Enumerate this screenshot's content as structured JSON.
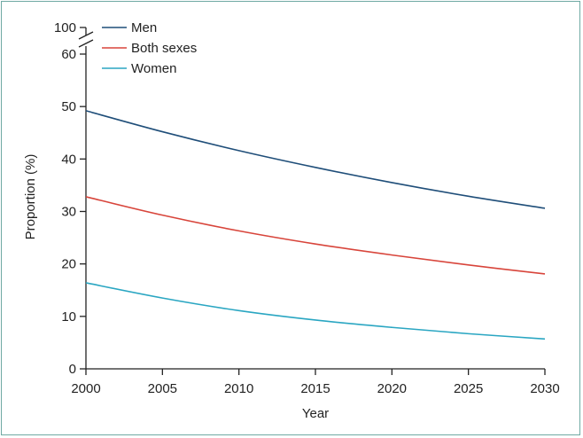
{
  "chart_data": {
    "type": "line",
    "xlabel": "Year",
    "ylabel": "Proportion (%)",
    "xlim": [
      2000,
      2030
    ],
    "ylim": [
      0,
      60
    ],
    "axis_break": {
      "upper_label": "100"
    },
    "x_ticks": [
      "2000",
      "2005",
      "2010",
      "2015",
      "2020",
      "2025",
      "2030"
    ],
    "y_ticks": [
      "0",
      "10",
      "20",
      "30",
      "40",
      "50",
      "60"
    ],
    "legend_position": "top-left",
    "grid": false,
    "x": [
      2000,
      2005,
      2010,
      2015,
      2020,
      2025,
      2030
    ],
    "series": [
      {
        "name": "Men",
        "color": "#1f4e79",
        "values": [
          49.2,
          45.2,
          41.6,
          38.4,
          35.5,
          32.9,
          30.6
        ]
      },
      {
        "name": "Both sexes",
        "color": "#d8453b",
        "values": [
          32.8,
          29.3,
          26.3,
          23.8,
          21.7,
          19.8,
          18.1
        ]
      },
      {
        "name": "Women",
        "color": "#2aa6c2",
        "values": [
          16.4,
          13.5,
          11.1,
          9.3,
          7.9,
          6.7,
          5.7
        ]
      }
    ]
  }
}
